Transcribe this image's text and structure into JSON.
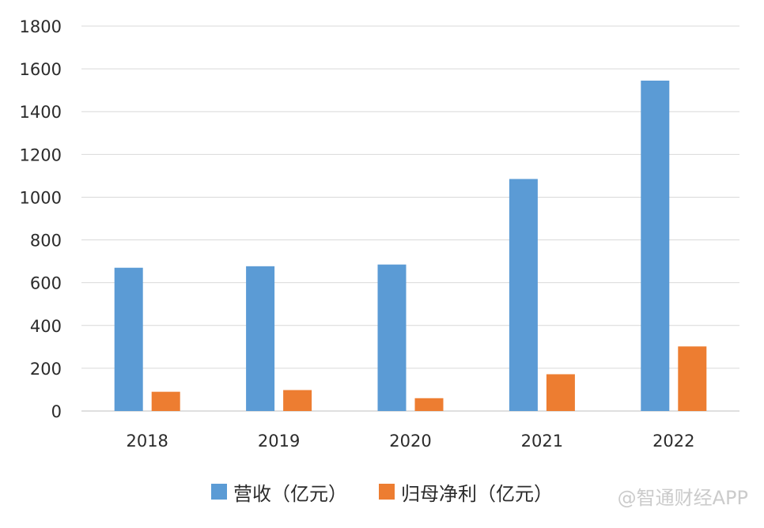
{
  "chart_data": {
    "type": "bar",
    "title": "",
    "xlabel": "",
    "ylabel": "",
    "categories": [
      "2018",
      "2019",
      "2020",
      "2021",
      "2022"
    ],
    "series": [
      {
        "name": "营收（亿元）",
        "color": "#5b9bd5",
        "values": [
          670,
          677,
          685,
          1085,
          1545
        ]
      },
      {
        "name": "归母净利（亿元）",
        "color": "#ed7d31",
        "values": [
          90,
          98,
          60,
          172,
          302
        ]
      }
    ],
    "ylim": [
      0,
      1800
    ],
    "yticks": [
      "0",
      "200",
      "400",
      "600",
      "800",
      "1000",
      "1200",
      "1400",
      "1600",
      "1800"
    ],
    "grid": true,
    "legend_position": "bottom"
  },
  "watermark": "@智通财经APP"
}
